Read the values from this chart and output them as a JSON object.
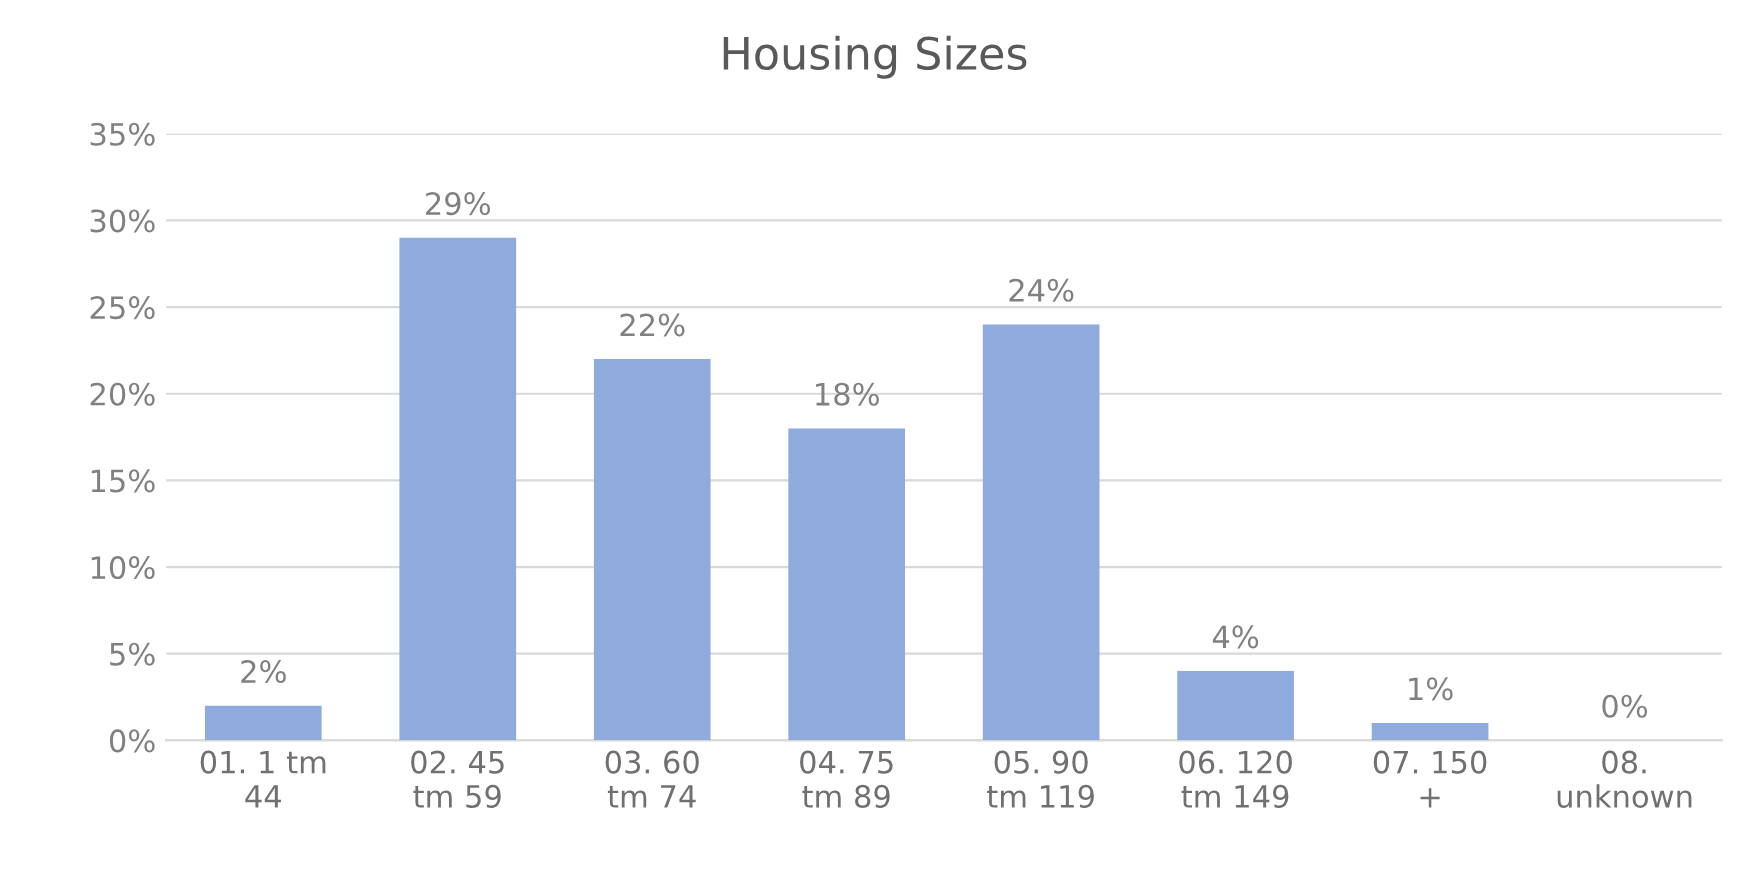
{
  "chart_data": {
    "type": "bar",
    "title": "Housing Sizes",
    "categories": [
      "01. 1 tm 44",
      "02. 45 tm 59",
      "03. 60 tm 74",
      "04. 75 tm 89",
      "05. 90 tm 119",
      "06. 120 tm 149",
      "07. 150 +",
      "08. unknown"
    ],
    "values": [
      2,
      29,
      22,
      18,
      24,
      4,
      1,
      0
    ],
    "value_labels": [
      "2%",
      "29%",
      "22%",
      "18%",
      "24%",
      "4%",
      "1%",
      "0%"
    ],
    "color": "#8faadc",
    "ylim": [
      0,
      35
    ],
    "yticks": [
      {
        "value": 0,
        "label": "0%"
      },
      {
        "value": 5,
        "label": "5%"
      },
      {
        "value": 10,
        "label": "10%"
      },
      {
        "value": 15,
        "label": "15%"
      },
      {
        "value": 20,
        "label": "20%"
      },
      {
        "value": 25,
        "label": "25%"
      },
      {
        "value": 30,
        "label": "30%"
      },
      {
        "value": 35,
        "label": "35%"
      }
    ],
    "grid": "y",
    "legend": false
  }
}
